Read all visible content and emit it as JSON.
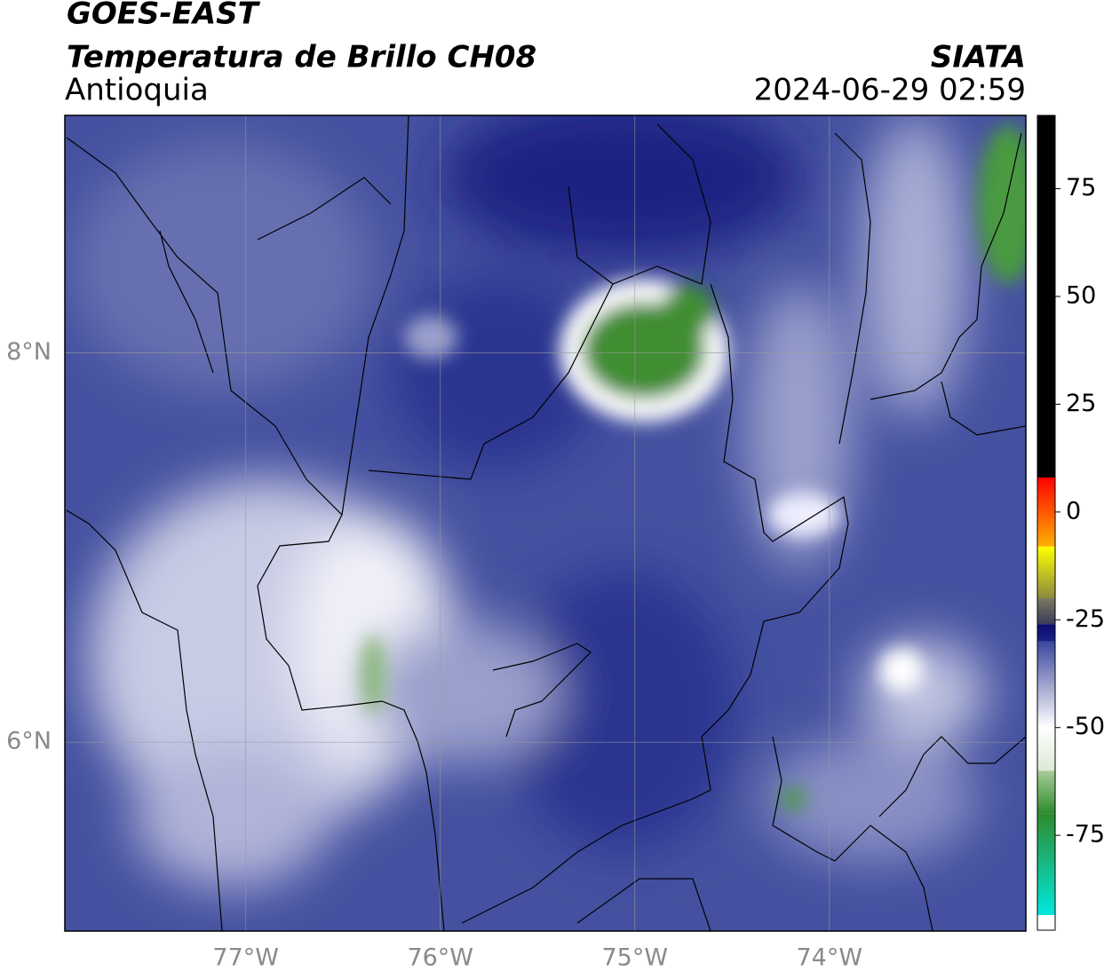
{
  "header": {
    "title": "GOES-EAST",
    "subtitle": "Temperatura de Brillo CH08",
    "region": "Antioquia",
    "source": "SIATA",
    "timestamp": "2024-06-29 02:59"
  },
  "map": {
    "xlim": [
      -77.93,
      -72.99
    ],
    "ylim": [
      5.03,
      9.22
    ],
    "xticks": [
      {
        "value": -77,
        "label": "77°W"
      },
      {
        "value": -76,
        "label": "76°W"
      },
      {
        "value": -75,
        "label": "75°W"
      },
      {
        "value": -74,
        "label": "74°W"
      }
    ],
    "yticks": [
      {
        "value": 6,
        "label": "6°N"
      },
      {
        "value": 8,
        "label": "8°N"
      }
    ],
    "grid": true
  },
  "colorbar": {
    "lim": [
      -97,
      92
    ],
    "ticks": [
      -75,
      -50,
      -25,
      0,
      25,
      50,
      75
    ],
    "bands": [
      {
        "from": -97,
        "to": -93.5,
        "colors": [
          "#ffffff",
          "#ffffff"
        ]
      },
      {
        "from": -93.5,
        "to": -70,
        "colors": [
          "#00e8dc",
          "#2e8b2e"
        ]
      },
      {
        "from": -70,
        "to": -60,
        "colors": [
          "#2e8b2e",
          "#a8cc98"
        ]
      },
      {
        "from": -60,
        "to": -50,
        "colors": [
          "#dce9d4",
          "#ffffff"
        ]
      },
      {
        "from": -50,
        "to": -30,
        "colors": [
          "#ffffff",
          "#3a479c"
        ]
      },
      {
        "from": -30,
        "to": -26,
        "colors": [
          "#1c2385",
          "#0a0a6e"
        ]
      },
      {
        "from": -26,
        "to": -20,
        "colors": [
          "#3a3a5a",
          "#7a7a60"
        ]
      },
      {
        "from": -20,
        "to": -8,
        "colors": [
          "#8a8a40",
          "#ffff00"
        ]
      },
      {
        "from": -8,
        "to": 8,
        "colors": [
          "#ffb000",
          "#ff0000"
        ]
      },
      {
        "from": 8,
        "to": 92,
        "colors": [
          "#000000",
          "#000000"
        ]
      }
    ]
  }
}
